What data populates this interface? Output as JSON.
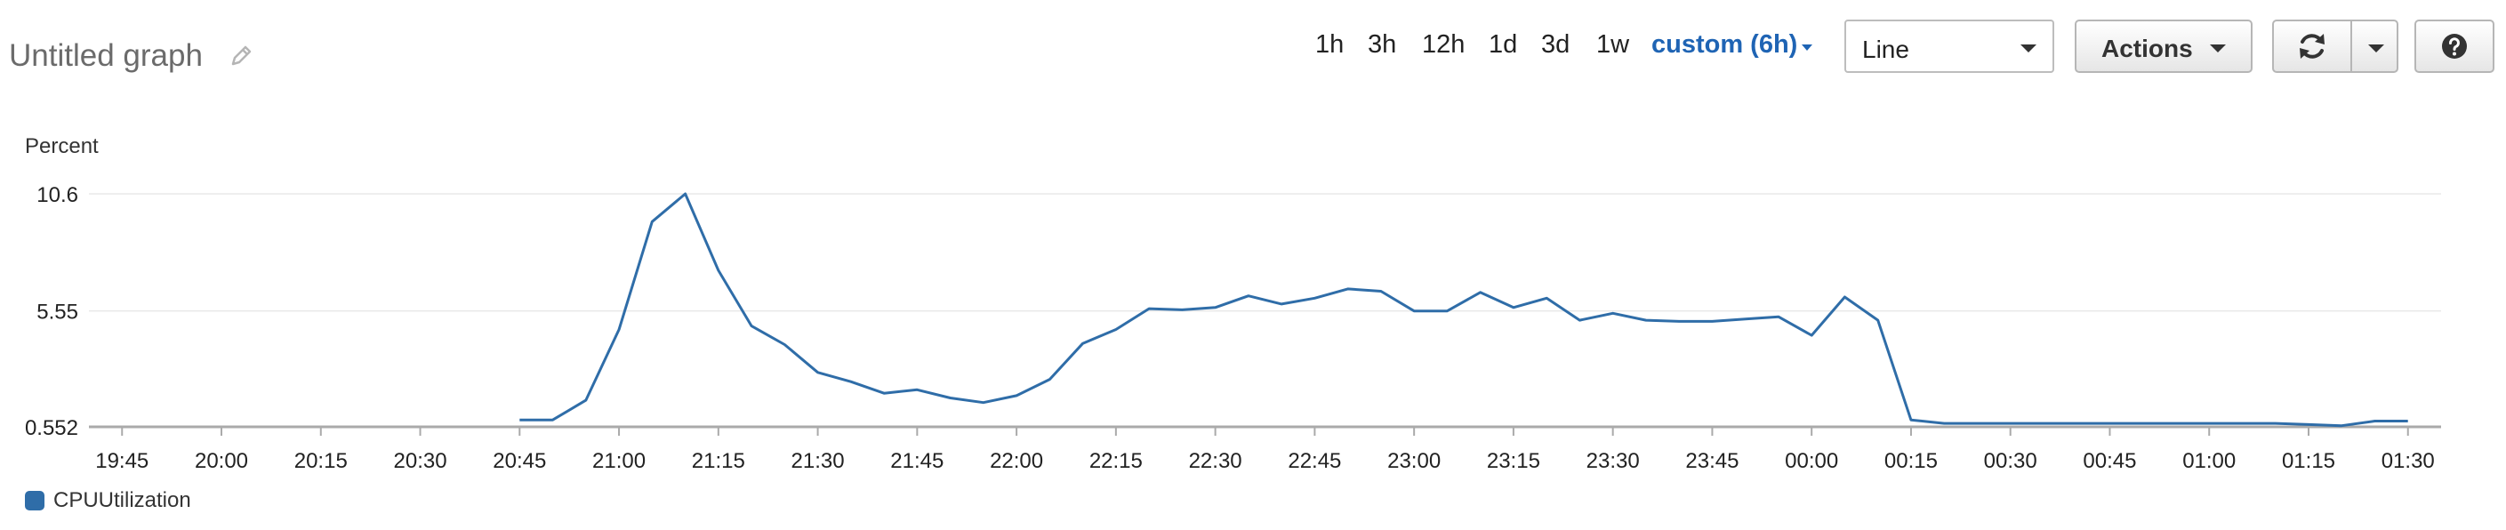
{
  "header": {
    "title": "Untitled graph",
    "edit_icon": "pencil-icon"
  },
  "toolbar": {
    "time_ranges": [
      "1h",
      "3h",
      "12h",
      "1d",
      "3d",
      "1w"
    ],
    "custom_range": "custom (6h)",
    "graph_type": "Line",
    "actions_label": "Actions",
    "refresh_icon": "refresh-icon",
    "refresh_menu_icon": "chevron-down-icon",
    "help_icon": "help-icon"
  },
  "colors": {
    "series": "#2f6da8",
    "accent": "#1f64b4"
  },
  "chart_data": {
    "type": "line",
    "title": "",
    "ylabel": "Percent",
    "xlabel": "",
    "ylim": [
      0.552,
      10.6
    ],
    "y_ticks": [
      "10.6",
      "5.55",
      "0.552"
    ],
    "y_tick_values": [
      10.6,
      5.55,
      0.552
    ],
    "x_range": [
      "19:40",
      "01:35"
    ],
    "x_ticks": [
      "19:45",
      "20:00",
      "20:15",
      "20:30",
      "20:45",
      "21:00",
      "21:15",
      "21:30",
      "21:45",
      "22:00",
      "22:15",
      "22:30",
      "22:45",
      "23:00",
      "23:15",
      "23:30",
      "23:45",
      "00:00",
      "00:15",
      "00:30",
      "00:45",
      "01:00",
      "01:15",
      "01:30"
    ],
    "grid": true,
    "legend_position": "bottom-left",
    "series": [
      {
        "name": "CPUUtilization",
        "x": [
          "20:45",
          "20:50",
          "20:55",
          "21:00",
          "21:05",
          "21:10",
          "21:15",
          "21:20",
          "21:25",
          "21:30",
          "21:35",
          "21:40",
          "21:45",
          "21:50",
          "21:55",
          "22:00",
          "22:05",
          "22:10",
          "22:15",
          "22:20",
          "22:25",
          "22:30",
          "22:35",
          "22:40",
          "22:45",
          "22:50",
          "22:55",
          "23:00",
          "23:05",
          "23:10",
          "23:15",
          "23:20",
          "23:25",
          "23:30",
          "23:35",
          "23:40",
          "23:45",
          "23:50",
          "23:55",
          "00:00",
          "00:05",
          "00:10",
          "00:15",
          "00:20",
          "00:25",
          "00:30",
          "00:35",
          "00:40",
          "00:45",
          "00:50",
          "00:55",
          "01:00",
          "01:05",
          "01:10",
          "01:15",
          "01:20",
          "01:25",
          "01:30"
        ],
        "values": [
          0.85,
          0.85,
          1.7,
          4.75,
          9.4,
          10.6,
          7.3,
          4.9,
          4.1,
          2.9,
          2.5,
          2.0,
          2.15,
          1.8,
          1.6,
          1.9,
          2.6,
          4.15,
          4.75,
          5.65,
          5.6,
          5.7,
          6.2,
          5.85,
          6.1,
          6.5,
          6.4,
          5.55,
          5.55,
          6.35,
          5.7,
          6.1,
          5.15,
          5.45,
          5.15,
          5.1,
          5.1,
          5.2,
          5.3,
          4.5,
          6.15,
          5.15,
          0.85,
          0.7,
          0.7,
          0.7,
          0.7,
          0.7,
          0.7,
          0.7,
          0.7,
          0.7,
          0.7,
          0.7,
          0.65,
          0.6,
          0.8,
          0.8
        ]
      }
    ]
  }
}
